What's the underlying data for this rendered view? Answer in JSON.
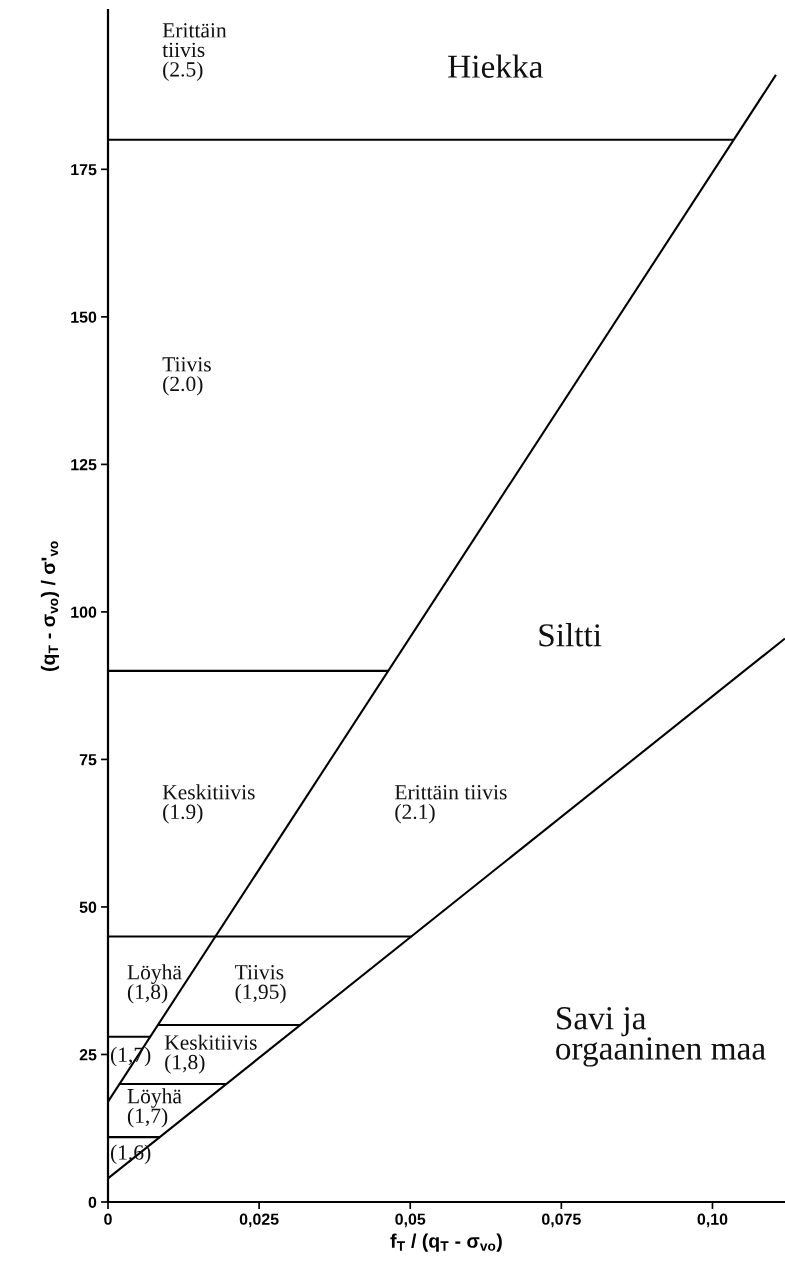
{
  "chart_data": {
    "type": "line",
    "xlabel": "f$_{T}$ / (q$_{T}$ - σ$_{vo}$)",
    "ylabel": "(q$_{T}$ - σ$_{vo}$) / σ'$_{vo}$",
    "xlim": [
      0,
      0.112
    ],
    "ylim": [
      0,
      202
    ],
    "xticks": [
      0,
      {
        "value": 0.025,
        "label": "0,025"
      },
      {
        "value": 0.05,
        "label": "0,05"
      },
      {
        "value": 0.075,
        "label": "0,075"
      },
      {
        "value": 0.1,
        "label": "0,10"
      }
    ],
    "yticks": [
      0,
      25,
      50,
      75,
      100,
      125,
      150,
      175
    ],
    "series": [
      {
        "color": "#000000",
        "x": [
          0,
          0.1105
        ],
        "values": [
          17,
          191
        ]
      },
      {
        "color": "#000000",
        "x": [
          0,
          0.112
        ],
        "values": [
          4,
          95.5
        ]
      },
      {
        "color": "#000000",
        "x": [
          0,
          0.1035
        ],
        "values": [
          180,
          180
        ]
      },
      {
        "color": "#000000",
        "x": [
          0,
          0.0463
        ],
        "values": [
          90,
          90
        ]
      },
      {
        "color": "#000000",
        "x": [
          0,
          0.0502
        ],
        "values": [
          45,
          45
        ]
      },
      {
        "color": "#000000",
        "x": [
          0.0083,
          0.0318
        ],
        "values": [
          30,
          30
        ]
      },
      {
        "color": "#000000",
        "x": [
          0,
          0.007
        ],
        "values": [
          28,
          28
        ]
      },
      {
        "color": "#000000",
        "x": [
          0.0019,
          0.0196
        ],
        "values": [
          20,
          20
        ]
      },
      {
        "color": "#000000",
        "x": [
          0,
          0.0086
        ],
        "values": [
          11,
          11
        ]
      }
    ],
    "annotations": [
      "Hiekka",
      "Siltti",
      "Savi ja\norgaaninen maa",
      "Erittäin\ntiivis\n(2.5)",
      "Tiivis\n(2.0)",
      "Keskitiivis\n(1.9)",
      "Erittäin tiivis\n(2.1)",
      "Löyhä\n(1,8)",
      "Tiivis\n(1,95)",
      "Keskitiivis\n(1,8)",
      "(1,7)",
      "Löyhä\n(1,7)",
      "(1,6)"
    ]
  }
}
